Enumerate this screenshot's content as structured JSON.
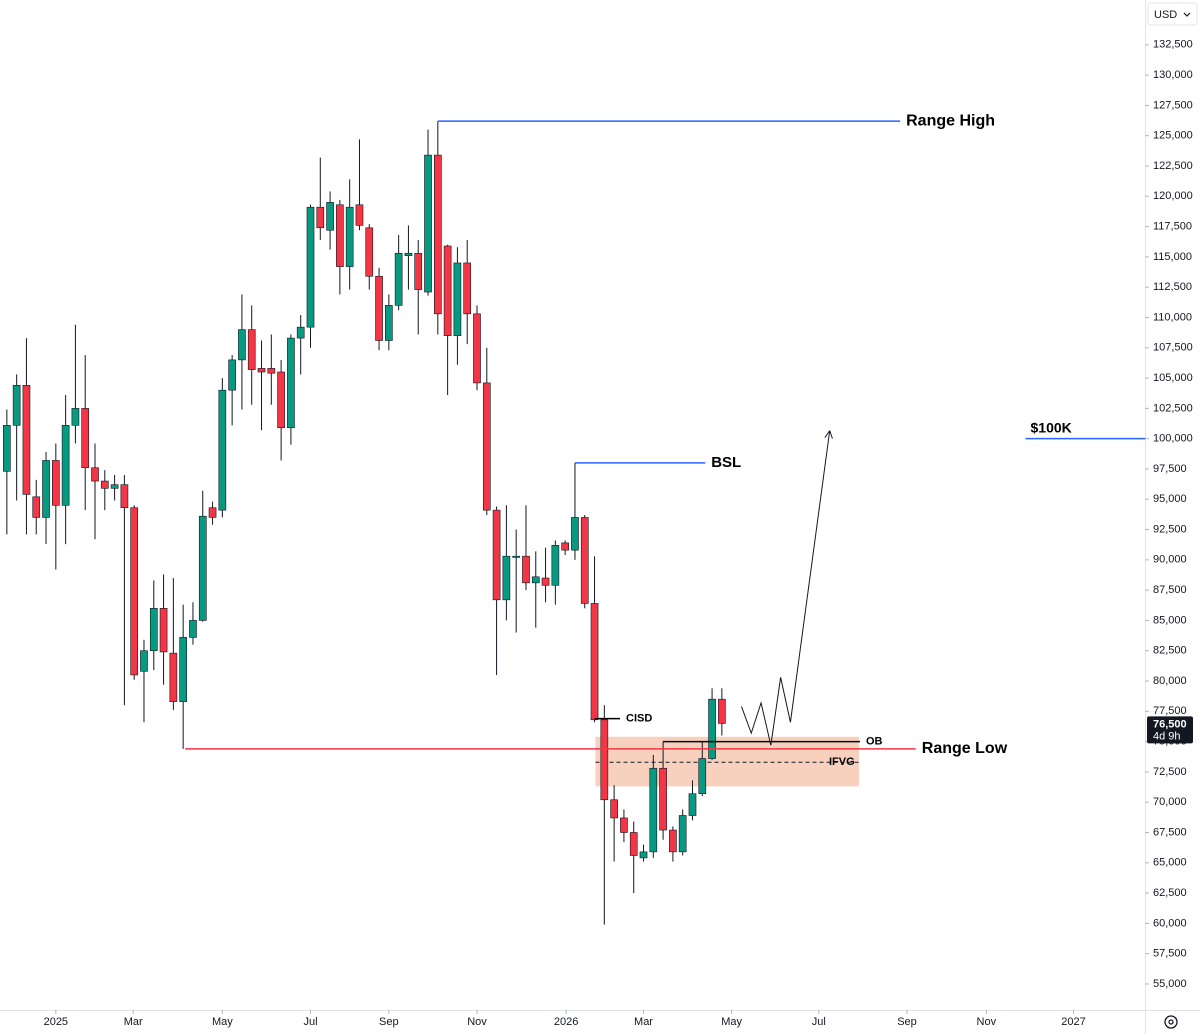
{
  "chart_data": {
    "type": "candlestick",
    "currency": "USD",
    "up_color": "#089981",
    "down_color": "#f23645",
    "candles": {
      "x": [
        0,
        1,
        2,
        3,
        4,
        5,
        6,
        7,
        8,
        9,
        10,
        11,
        12,
        13,
        14,
        15,
        16,
        17,
        18,
        19,
        20,
        21,
        22,
        23,
        24,
        25,
        26,
        27,
        28,
        29,
        30,
        31,
        32,
        33,
        34,
        35,
        36,
        37,
        38,
        39,
        40,
        41,
        42,
        43,
        44,
        45,
        46,
        47,
        48,
        49,
        50,
        51,
        52,
        53,
        54,
        55,
        56,
        57,
        58,
        59,
        60,
        61,
        62,
        63,
        64,
        65,
        66,
        67,
        68,
        69,
        70,
        71,
        72,
        73
      ],
      "open": [
        97300,
        101100,
        104400,
        95200,
        93500,
        98200,
        94500,
        101100,
        102500,
        97600,
        96500,
        95900,
        96200,
        94300,
        80800,
        82500,
        86000,
        82300,
        78300,
        83600,
        85000,
        94300,
        94100,
        104000,
        106500,
        109000,
        105800,
        105800,
        105500,
        100900,
        108300,
        109200,
        119100,
        117200,
        119300,
        114200,
        119300,
        117400,
        113400,
        108100,
        111000,
        115100,
        115300,
        112100,
        123400,
        115900,
        108500,
        114500,
        110300,
        104600,
        94100,
        86700,
        90200,
        90300,
        88100,
        88500,
        87900,
        91400,
        90800,
        93500,
        86400,
        76800,
        70200,
        68700,
        67500,
        65400,
        65900,
        72800,
        67700,
        65900,
        68900,
        70700,
        73600,
        78500
      ],
      "high": [
        102400,
        105300,
        108300,
        96600,
        98900,
        99600,
        103600,
        109400,
        106900,
        99600,
        97400,
        97000,
        97000,
        94500,
        83400,
        88300,
        88800,
        88500,
        86300,
        86500,
        95700,
        94800,
        105000,
        106900,
        111900,
        111000,
        108100,
        108600,
        106500,
        108600,
        110200,
        119300,
        123200,
        120400,
        119700,
        121400,
        124700,
        117700,
        114100,
        111900,
        116800,
        117600,
        116400,
        125500,
        126200,
        116000,
        115800,
        116400,
        111000,
        107500,
        94400,
        94500,
        92500,
        94500,
        90700,
        91000,
        91600,
        91600,
        98000,
        93700,
        90300,
        78000,
        71400,
        69400,
        68400,
        66500,
        73900,
        75000,
        68000,
        69400,
        71800,
        75000,
        79400,
        79400
      ],
      "low": [
        92100,
        94900,
        92100,
        92100,
        91300,
        89200,
        91300,
        99600,
        94100,
        91700,
        94100,
        94900,
        78000,
        80100,
        76600,
        80900,
        79700,
        77600,
        74400,
        83000,
        84900,
        92900,
        93500,
        101100,
        102400,
        102800,
        100700,
        102800,
        98200,
        99500,
        105300,
        107500,
        116400,
        115600,
        111900,
        112300,
        117200,
        112300,
        107300,
        107300,
        110600,
        112300,
        108600,
        111800,
        108600,
        103600,
        106100,
        107800,
        104000,
        93700,
        80500,
        85000,
        84000,
        87500,
        84400,
        86500,
        86300,
        90400,
        90000,
        86000,
        76600,
        59900,
        65100,
        66700,
        62500,
        65100,
        65400,
        66900,
        65100,
        65600,
        68500,
        70500,
        73500,
        75500
      ],
      "close": [
        101100,
        104400,
        95400,
        93500,
        98200,
        94500,
        101100,
        102500,
        97600,
        96500,
        95900,
        96200,
        94300,
        80500,
        82500,
        86000,
        82400,
        78300,
        83600,
        85000,
        93600,
        93500,
        104000,
        106500,
        109000,
        105700,
        105500,
        105400,
        100900,
        108300,
        109200,
        119100,
        117400,
        119500,
        114200,
        119100,
        117600,
        113400,
        108100,
        111000,
        115300,
        115300,
        112300,
        123400,
        110300,
        108500,
        114500,
        110300,
        104600,
        94100,
        86700,
        90300,
        90300,
        88100,
        88600,
        87900,
        91200,
        90800,
        93500,
        86400,
        76800,
        70200,
        68700,
        67500,
        65600,
        65900,
        72800,
        67700,
        65900,
        68900,
        70700,
        73600,
        78500,
        76500
      ]
    },
    "annotations": [
      {
        "label": "Range High",
        "value": 126200,
        "from": 44,
        "to": 91.2,
        "color": "#2962ff",
        "label_position": "right",
        "size": 16
      },
      {
        "label": "BSL",
        "value": 98000,
        "from": 58,
        "to": 71.3,
        "color": "#2962ff",
        "label_position": "right",
        "size": 15
      },
      {
        "label": "$100K",
        "value": 100000,
        "from": 104,
        "to": 116.2,
        "color": "#2962ff",
        "label_position": "above",
        "size": 14
      },
      {
        "label": "Range Low",
        "value": 74400,
        "from": 18.2,
        "to": 92.8,
        "color": "#f23645",
        "label_position": "right",
        "size": 16
      },
      {
        "label": "CISD",
        "value": 76900,
        "from": 60,
        "to": 62.6,
        "color": "#000000",
        "label_position": "right",
        "size": 11
      },
      {
        "label": "OB",
        "value": 75000,
        "from": 67,
        "to": 87.1,
        "color": "#000000",
        "label_position": "right",
        "size": 11
      }
    ],
    "zone": {
      "label": "IFVG",
      "top": 75400,
      "bottom": 71300,
      "mid": 73300,
      "from": 60.1,
      "to": 87.0,
      "color": "#f4b393"
    },
    "projection": {
      "x": [
        75,
        76,
        77,
        78,
        79,
        80,
        84
      ],
      "values": [
        77900,
        75700,
        78200,
        74700,
        80300,
        76600,
        100600
      ]
    },
    "price_tag": {
      "value": 76500,
      "label": "76,500",
      "countdown": "4d 9h"
    },
    "xlim": [
      -0.7,
      116.2
    ],
    "ylim": [
      52850,
      136200
    ],
    "xticks": [
      {
        "value": 5.0,
        "label": "2025"
      },
      {
        "value": 12.9,
        "label": "Mar"
      },
      {
        "value": 22.0,
        "label": "May"
      },
      {
        "value": 31.0,
        "label": "Jul"
      },
      {
        "value": 39.0,
        "label": "Sep"
      },
      {
        "value": 48.0,
        "label": "Nov"
      },
      {
        "value": 57.1,
        "label": "2026"
      },
      {
        "value": 65.0,
        "label": "Mar"
      },
      {
        "value": 74.0,
        "label": "May"
      },
      {
        "value": 82.9,
        "label": "Jul"
      },
      {
        "value": 91.9,
        "label": "Sep"
      },
      {
        "value": 100.0,
        "label": "Nov"
      },
      {
        "value": 108.9,
        "label": "2027"
      }
    ],
    "yticks": [
      {
        "value": 55000,
        "label": "55,000"
      },
      {
        "value": 57500,
        "label": "57,500"
      },
      {
        "value": 60000,
        "label": "60,000"
      },
      {
        "value": 62500,
        "label": "62,500"
      },
      {
        "value": 65000,
        "label": "65,000"
      },
      {
        "value": 67500,
        "label": "67,500"
      },
      {
        "value": 70000,
        "label": "70,000"
      },
      {
        "value": 72500,
        "label": "72,500"
      },
      {
        "value": 75000,
        "label": "75,000"
      },
      {
        "value": 77500,
        "label": "77,500"
      },
      {
        "value": 80000,
        "label": "80,000"
      },
      {
        "value": 82500,
        "label": "82,500"
      },
      {
        "value": 85000,
        "label": "85,000"
      },
      {
        "value": 87500,
        "label": "87,500"
      },
      {
        "value": 90000,
        "label": "90,000"
      },
      {
        "value": 92500,
        "label": "92,500"
      },
      {
        "value": 95000,
        "label": "95,000"
      },
      {
        "value": 97500,
        "label": "97,500"
      },
      {
        "value": 100000,
        "label": "100,000"
      },
      {
        "value": 102500,
        "label": "102,500"
      },
      {
        "value": 105000,
        "label": "105,000"
      },
      {
        "value": 107500,
        "label": "107,500"
      },
      {
        "value": 110000,
        "label": "110,000"
      },
      {
        "value": 112500,
        "label": "112,500"
      },
      {
        "value": 115000,
        "label": "115,000"
      },
      {
        "value": 117500,
        "label": "117,500"
      },
      {
        "value": 120000,
        "label": "120,000"
      },
      {
        "value": 122500,
        "label": "122,500"
      },
      {
        "value": 125000,
        "label": "125,000"
      },
      {
        "value": 127500,
        "label": "127,500"
      },
      {
        "value": 130000,
        "label": "130,000"
      },
      {
        "value": 132500,
        "label": "132,500"
      }
    ]
  }
}
